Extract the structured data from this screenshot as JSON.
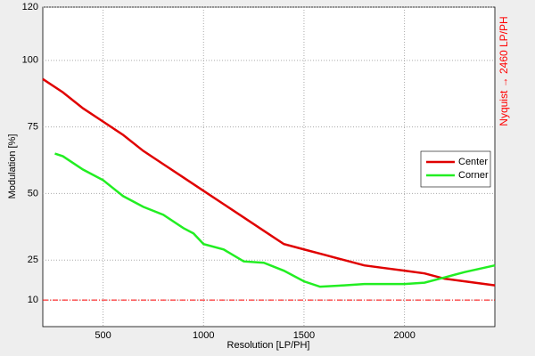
{
  "chart_data": {
    "type": "line",
    "x_label": "Resolution [LP/PH]",
    "y_label": "Modulation [%]",
    "annotation": "Nyquist → 2460 LP/PH",
    "annotation_color": "#ff0000",
    "reference_line": 10,
    "reference_color": "#ff0000",
    "series": [
      {
        "name": "Center",
        "color": "#e00000",
        "x": [
          200,
          300,
          400,
          500,
          600,
          700,
          800,
          900,
          1000,
          1100,
          1200,
          1300,
          1400,
          1500,
          1600,
          1700,
          1800,
          1900,
          2000,
          2100,
          2200,
          2300,
          2400,
          2450
        ],
        "values": [
          93,
          88,
          82,
          77,
          72,
          66,
          61,
          56,
          51,
          46,
          41,
          36,
          31,
          29,
          27,
          25,
          23,
          22,
          21,
          20,
          18,
          17,
          16,
          15.5
        ]
      },
      {
        "name": "Corner",
        "color": "#22ee22",
        "x": [
          260,
          300,
          400,
          500,
          550,
          600,
          700,
          800,
          900,
          950,
          1000,
          1100,
          1200,
          1300,
          1400,
          1500,
          1580,
          1700,
          1800,
          2000,
          2100,
          2200,
          2300,
          2450
        ],
        "values": [
          65,
          64,
          59,
          55,
          52,
          49,
          45,
          42,
          37,
          35,
          31,
          29,
          24.5,
          24,
          21,
          17,
          15,
          15.5,
          16,
          16,
          16.5,
          18.5,
          20.5,
          23
        ]
      }
    ],
    "xlim": [
      200,
      2450
    ],
    "xticks": [
      500,
      1000,
      1500,
      2000
    ],
    "ylim": [
      0,
      120
    ],
    "yticks": [
      10,
      25,
      50,
      75,
      100,
      120
    ],
    "grid": true,
    "legend": "right"
  }
}
